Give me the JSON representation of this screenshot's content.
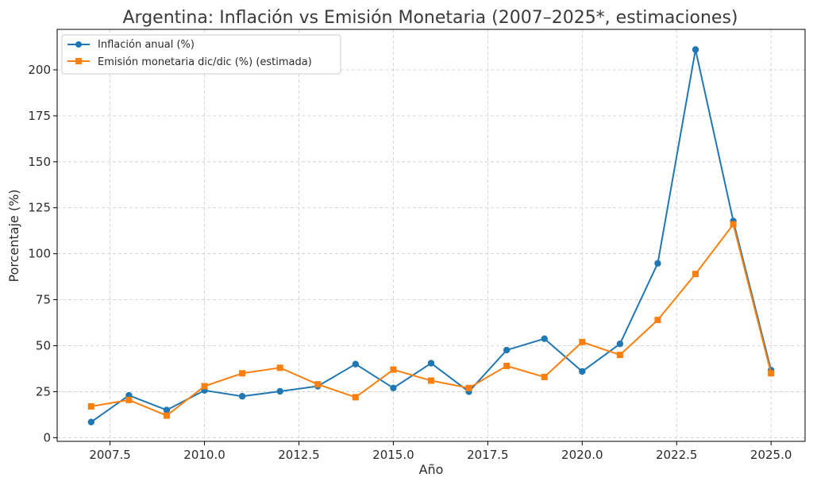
{
  "chart_data": {
    "type": "line",
    "title": "Argentina: Inflación vs Emisión Monetaria (2007–2025*, estimaciones)",
    "xlabel": "Año",
    "ylabel": "Porcentaje (%)",
    "xlim": [
      2006.1,
      2025.9
    ],
    "ylim": [
      -2,
      222
    ],
    "xticks": [
      2007.5,
      2010.0,
      2012.5,
      2015.0,
      2017.5,
      2020.0,
      2022.5,
      2025.0
    ],
    "xtick_labels": [
      "2007.5",
      "2010.0",
      "2012.5",
      "2015.0",
      "2017.5",
      "2020.0",
      "2022.5",
      "2025.0"
    ],
    "yticks": [
      0,
      25,
      50,
      75,
      100,
      125,
      150,
      175,
      200
    ],
    "ytick_labels": [
      "0",
      "25",
      "50",
      "75",
      "100",
      "125",
      "150",
      "175",
      "200"
    ],
    "grid": true,
    "legend_position": "top-left",
    "x": [
      2007,
      2008,
      2009,
      2010,
      2011,
      2012,
      2013,
      2014,
      2015,
      2016,
      2017,
      2018,
      2019,
      2020,
      2021,
      2022,
      2023,
      2024,
      2025
    ],
    "series": [
      {
        "name": "Inflación anual (%)",
        "color": "#1f77b4",
        "marker": "circle",
        "values": [
          8.5,
          23,
          15,
          25.7,
          22.5,
          25.2,
          28,
          40,
          27,
          40.5,
          25,
          47.6,
          53.8,
          36,
          51,
          94.8,
          211,
          117.8,
          36.7
        ]
      },
      {
        "name": "Emisión monetaria dic/dic (%) (estimada)",
        "color": "#ff7f0e",
        "marker": "square",
        "values": [
          17,
          20.5,
          12,
          28,
          35,
          38,
          29,
          22,
          37,
          31,
          27,
          39,
          33,
          52,
          45,
          64,
          89,
          116,
          35
        ]
      }
    ]
  }
}
